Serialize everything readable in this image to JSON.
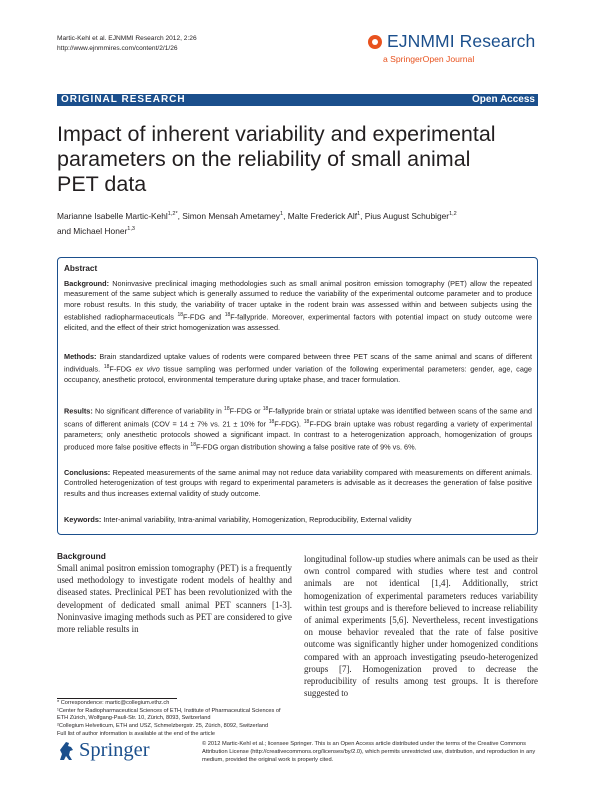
{
  "header": {
    "citation_line1": "Martic-Kehl et al. EJNMMI Research 2012, 2:26",
    "citation_line2": "http://www.ejnmmires.com/content/2/1/26",
    "journal_name": "EJNMMI Research",
    "journal_subtitle": "a SpringerOpen Journal"
  },
  "banner": {
    "section": "ORIGINAL RESEARCH",
    "access": "Open Access"
  },
  "title": {
    "line1": "Impact of inherent variability and experimental",
    "line2": "parameters on the reliability of small animal",
    "line3": "PET data"
  },
  "authors": {
    "a1": "Marianne Isabelle Martic-Kehl",
    "a1_sup": "1,2*",
    "a2": ", Simon Mensah Ametamey",
    "a2_sup": "1",
    "a3": ", Malte Frederick Alf",
    "a3_sup": "1",
    "a4": ", Pius August Schubiger",
    "a4_sup": "1,2",
    "a5": "and Michael Honer",
    "a5_sup": "1,3"
  },
  "abstract": {
    "heading": "Abstract",
    "background_label": "Background:",
    "background_text": " Noninvasive preclinical imaging methodologies such as small animal positron emission tomography (PET) allow the repeated measurement of the same subject which is generally assumed to reduce the variability of the experimental outcome parameter and to produce more robust results. In this study, the variability of tracer uptake in the rodent brain was assessed within and between subjects using the established radiopharmaceuticals ",
    "background_sup1": "18",
    "background_mid": "F-FDG and ",
    "background_sup2": "18",
    "background_end": "F-fallypride. Moreover, experimental factors with potential impact on study outcome were elicited, and the effect of their strict homogenization was assessed.",
    "methods_label": "Methods:",
    "methods_text1": " Brain standardized uptake values of rodents were compared between three PET scans of the same animal and scans of different individuals. ",
    "methods_sup": "18",
    "methods_text2": "F-FDG ",
    "methods_italic": "ex vivo",
    "methods_text3": " tissue sampling was performed under variation of the following experimental parameters: gender, age, cage occupancy, anesthetic protocol, environmental temperature during uptake phase, and tracer formulation.",
    "results_label": "Results:",
    "results_text1": " No significant difference of variability in ",
    "results_sup1": "18",
    "results_text2": "F-FDG or ",
    "results_sup2": "18",
    "results_text3": "F-fallypride brain or striatal uptake was identified between scans of the same and scans of different animals (COV = 14 ± 7% vs. 21 ± 10% for ",
    "results_sup3": "18",
    "results_text4": "F-FDG). ",
    "results_sup4": "18",
    "results_text5": "F-FDG brain uptake was robust regarding a variety of experimental parameters; only anesthetic protocols showed a significant impact. In contrast to a heterogenization approach, homogenization of groups produced more false positive effects in ",
    "results_sup5": "18",
    "results_text6": "F-FDG organ distribution showing a false positive rate of 9% vs. 6%.",
    "conclusions_label": "Conclusions:",
    "conclusions_text": " Repeated measurements of the same animal may not reduce data variability compared with measurements on different animals. Controlled heterogenization of test groups with regard to experimental parameters is advisable as it decreases the generation of false positive results and thus increases external validity of study outcome.",
    "keywords_label": "Keywords:",
    "keywords_text": " Inter-animal variability, Intra-animal variability, Homogenization, Reproducibility, External validity"
  },
  "body": {
    "background_heading": "Background",
    "left_column": "Small animal positron emission tomography (PET) is a frequently used methodology to investigate rodent models of healthy and diseased states. Preclinical PET has been revolutionized with the development of dedicated small animal PET scanners [1-3]. Noninvasive imaging methods such as PET are considered to give more reliable results in",
    "right_column": "longitudinal follow-up studies where animals can be used as their own control compared with studies where test and control animals are not identical [1,4]. Additionally, strict homogenization of experimental parameters reduces variability within test groups and is therefore believed to increase reliability of animal experiments [5,6]. Nevertheless, recent investigations on mouse behavior revealed that the rate of false positive outcome was significantly higher under homogenized conditions compared with an approach investigating pseudo-heterogenized groups [7]. Homogenization proved to decrease the reproducibility of results among test groups. It is therefore suggested to"
  },
  "footnotes": {
    "correspondence": "* Correspondence: martic@collegium.ethz.ch",
    "aff1": "¹Center for Radiopharmaceutical Sciences of ETH, Institute of Pharmaceutical Sciences of ETH Zürich, Wolfgang-Pauli-Str. 10, Zürich, 8093, Switzerland",
    "aff2": "²Collegium Helveticum, ETH and USZ, Schmelzbergstr. 25, Zürich, 8092, Switzerland",
    "full_list": "Full list of author information is available at the end of the article"
  },
  "footer": {
    "publisher": "Springer",
    "license": "© 2012 Martic-Kehl et al.; licensee Springer. This is an Open Access article distributed under the terms of the Creative Commons Attribution License (http://creativecommons.org/licenses/by/2.0), which permits unrestricted use, distribution, and reproduction in any medium, provided the original work is properly cited."
  },
  "colors": {
    "brand_blue": "#1b4f8c",
    "accent_orange": "#e8521e"
  }
}
